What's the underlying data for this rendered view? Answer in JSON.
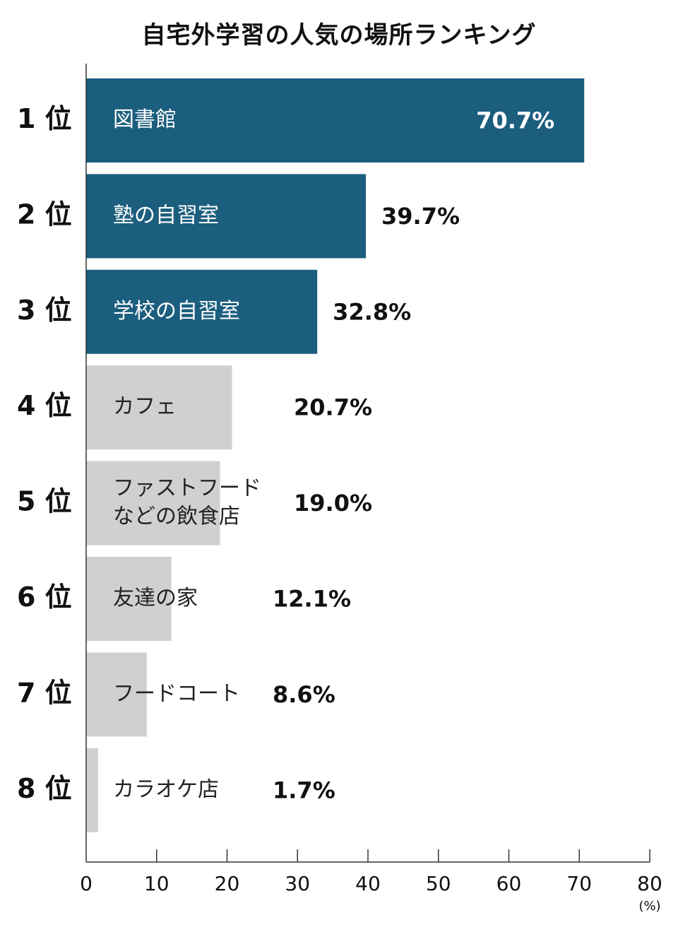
{
  "chart_data": {
    "type": "bar",
    "orientation": "horizontal",
    "title": "自宅外学習の人気の場所ランキング",
    "ranks": [
      "1 位",
      "2 位",
      "3 位",
      "4 位",
      "5 位",
      "6 位",
      "7 位",
      "8 位"
    ],
    "categories": [
      [
        "図書館"
      ],
      [
        "塾の自習室"
      ],
      [
        "学校の自習室"
      ],
      [
        "カフェ"
      ],
      [
        "ファストフード",
        "などの飲食店"
      ],
      [
        "友達の家"
      ],
      [
        "フードコート"
      ],
      [
        "カラオケ店"
      ]
    ],
    "values": [
      70.7,
      39.7,
      32.8,
      20.7,
      19.0,
      12.1,
      8.6,
      1.7
    ],
    "value_labels": [
      "70.7%",
      "39.7%",
      "32.8%",
      "20.7%",
      "19.0%",
      "12.1%",
      "8.6%",
      "1.7%"
    ],
    "xlim": [
      0,
      80
    ],
    "x_ticks": [
      "0",
      "10",
      "20",
      "30",
      "40",
      "50",
      "60",
      "70",
      "80"
    ],
    "x_unit": "(%)",
    "grid": false,
    "colors": {
      "highlight_bar": "#1b5e7e",
      "other_bar": "#d0d0d0",
      "highlight_label": "#ffffff",
      "other_label": "#222222",
      "value_text": "#111111",
      "axis": "#333333"
    },
    "highlight_count": 3
  }
}
